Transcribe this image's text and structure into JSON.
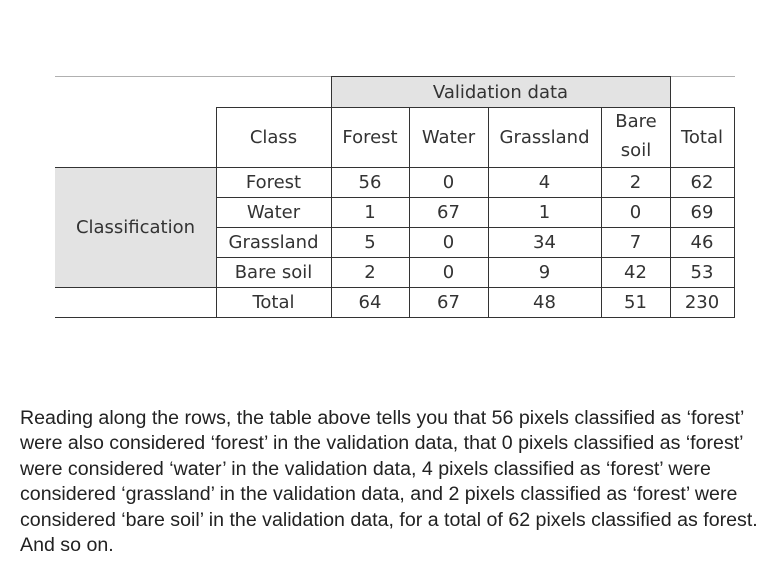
{
  "table": {
    "validation_header": "Validation data",
    "classification_label": "Classification",
    "columns": [
      "Class",
      "Forest",
      "Water",
      "Grassland",
      "Bare soil",
      "Total"
    ],
    "rows": [
      {
        "cells": [
          "Forest",
          "56",
          "0",
          "4",
          "2",
          "62"
        ]
      },
      {
        "cells": [
          "Water",
          "1",
          "67",
          "1",
          "0",
          "69"
        ]
      },
      {
        "cells": [
          "Grassland",
          "5",
          "0",
          "34",
          "7",
          "46"
        ]
      },
      {
        "cells": [
          "Bare soil",
          "2",
          "0",
          "9",
          "42",
          "53"
        ]
      },
      {
        "cells": [
          "Total",
          "64",
          "67",
          "48",
          "51",
          "230"
        ]
      }
    ],
    "shade_color": "#e3e3e3"
  },
  "caption": "Reading along the rows, the table above tells you that 56 pixels classified as ‘forest’ were also considered ‘forest’ in the validation data, that 0 pixels classified as ‘forest’ were considered ‘water’ in the validation data, 4 pixels classified as ‘forest’ were considered ‘grassland’ in the validation data, and 2 pixels classified as ‘forest’ were considered ‘bare soil’ in the validation data, for a total of 62 pixels classified as forest. And so on."
}
